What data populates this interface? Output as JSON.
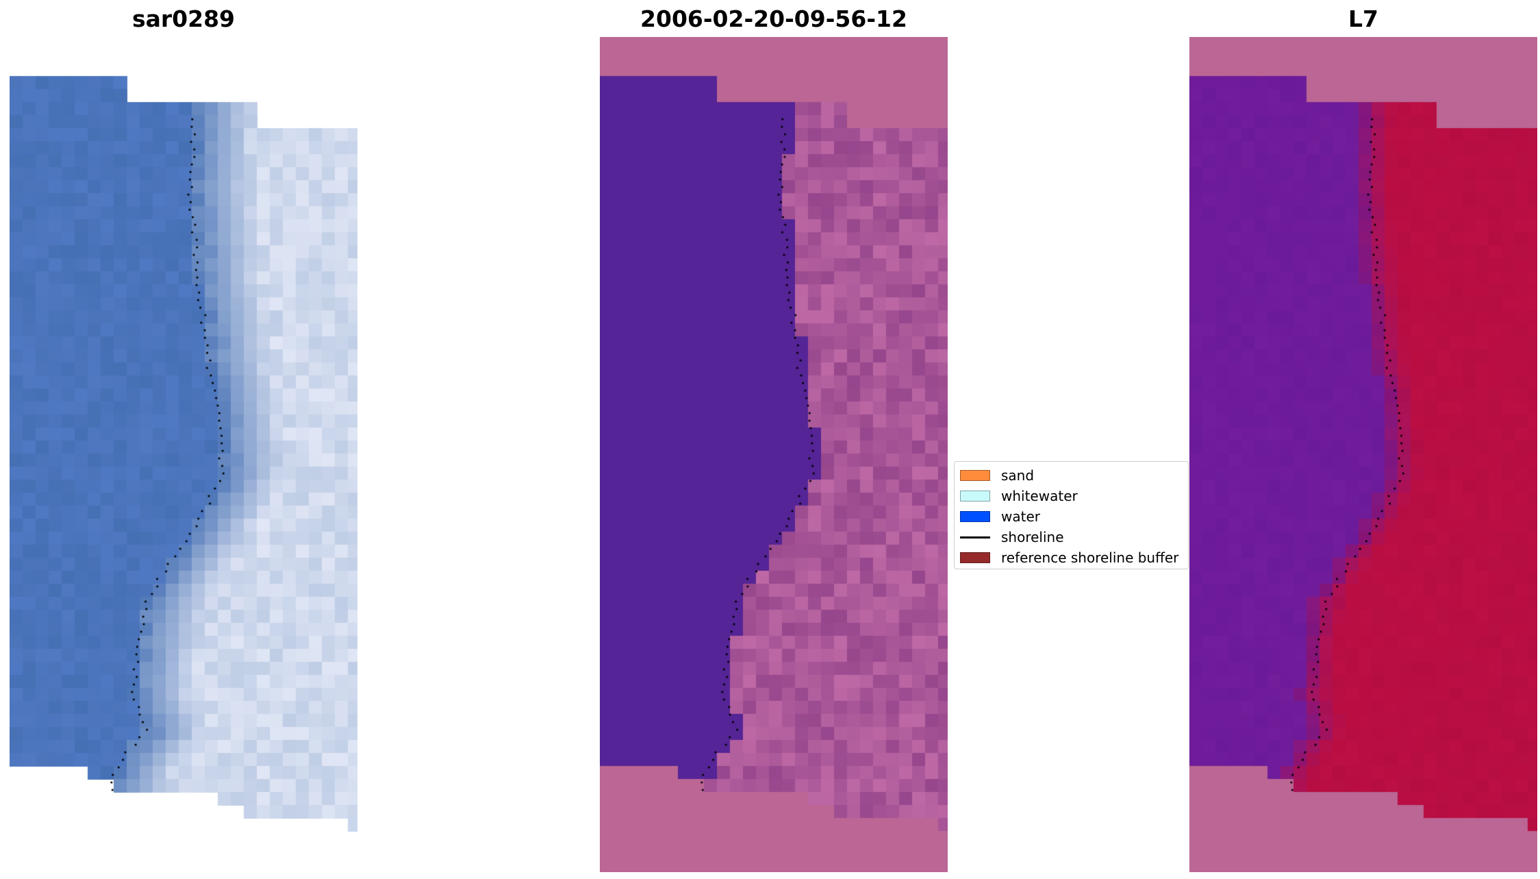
{
  "panels": [
    {
      "title": "sar0289",
      "kind": "rgb"
    },
    {
      "title": "2006-02-20-09-56-12",
      "kind": "classified"
    },
    {
      "title": "L7",
      "kind": "index"
    }
  ],
  "legend": {
    "items": [
      {
        "label": "sand",
        "color": "#ff8c3c",
        "type": "patch"
      },
      {
        "label": "whitewater",
        "color": "#c8fafa",
        "type": "patch"
      },
      {
        "label": "water",
        "color": "#0050ff",
        "type": "patch"
      },
      {
        "label": "shoreline",
        "color": "#000000",
        "type": "line"
      },
      {
        "label": "reference shoreline buffer",
        "color": "#962a2a",
        "type": "patch"
      }
    ]
  },
  "colors": {
    "background": "#ffffff",
    "nodata_pink": "#bb6694",
    "water_purple": "#552496",
    "rgb_water": "#4670b4",
    "rgb_surf": "#e0e6f5",
    "index_low": "#6e1ea0",
    "index_high": "#bd0b38"
  }
}
